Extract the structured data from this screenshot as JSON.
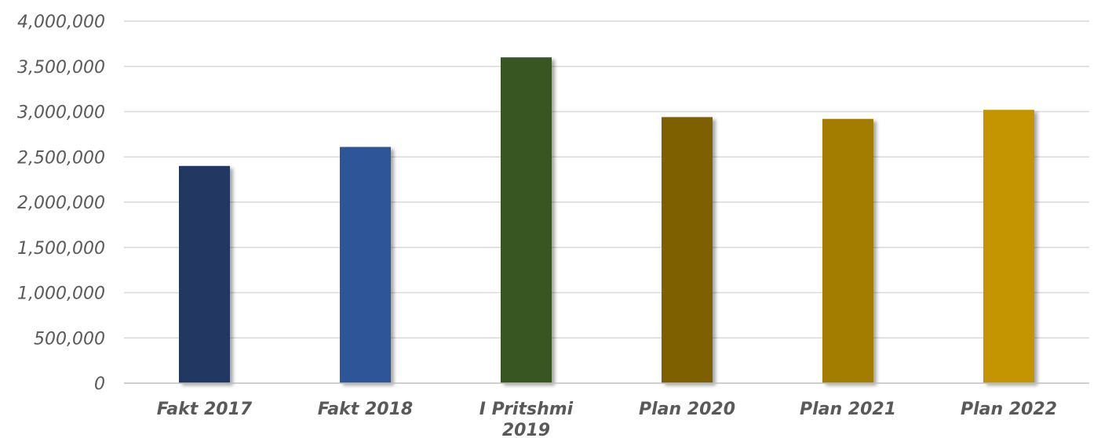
{
  "chart_data": {
    "type": "bar",
    "title": "",
    "xlabel": "",
    "ylabel": "",
    "categories": [
      [
        "Fakt 2017"
      ],
      [
        "Fakt 2018"
      ],
      [
        "I Pritshmi",
        "2019"
      ],
      [
        "Plan 2020"
      ],
      [
        "Plan 2021"
      ],
      [
        "Plan 2022"
      ]
    ],
    "values": [
      2400000,
      2610000,
      3600000,
      2940000,
      2920000,
      3020000
    ],
    "colors": [
      "#203864",
      "#2f5597",
      "#375623",
      "#7f6000",
      "#a37d00",
      "#c49500"
    ],
    "ylim": [
      0,
      4000000
    ],
    "yticks": [
      0,
      500000,
      1000000,
      1500000,
      2000000,
      2500000,
      3000000,
      3500000,
      4000000
    ],
    "ytick_labels": [
      "0",
      "500,000",
      "1,000,000",
      "1,500,000",
      "2,000,000",
      "2,500,000",
      "3,000,000",
      "3,500,000",
      "4,000,000"
    ],
    "grid": true,
    "legend": "none"
  }
}
